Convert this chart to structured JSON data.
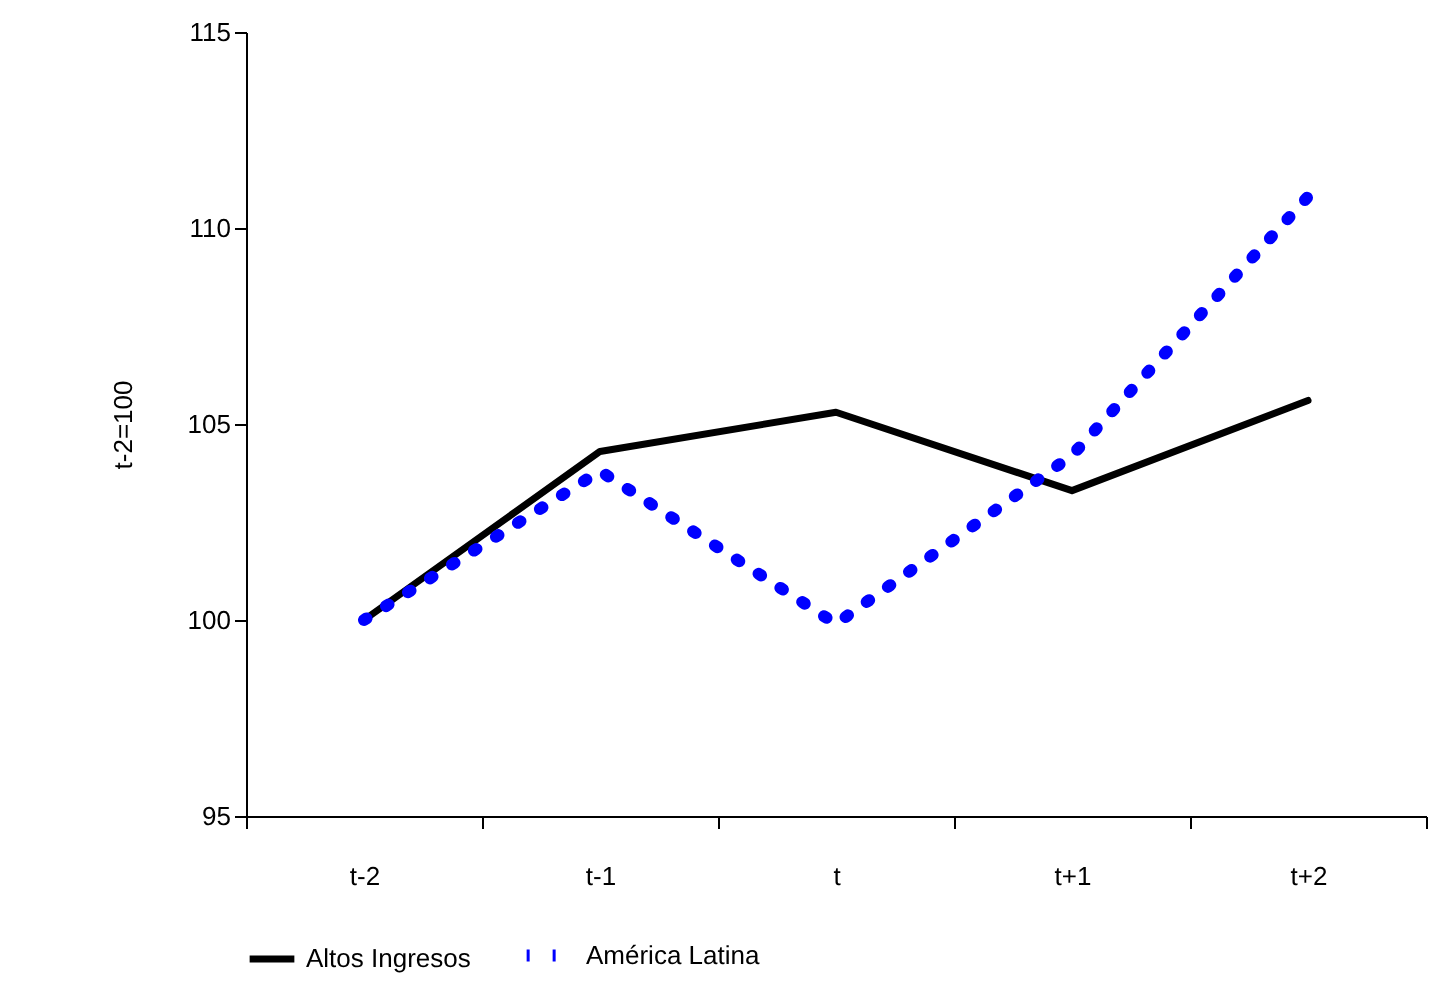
{
  "chart_data": {
    "type": "line",
    "ylabel": "t-2=100",
    "categories": [
      "t-2",
      "t-1",
      "t",
      "t+1",
      "t+2"
    ],
    "series": [
      {
        "name": "Altos Ingresos",
        "color": "#000000",
        "line_style": "solid",
        "values": [
          100,
          104.3,
          105.3,
          103.3,
          105.6
        ]
      },
      {
        "name": "América Latina",
        "color": "#0000ff",
        "line_style": "dotted",
        "values": [
          100,
          103.8,
          99.9,
          104.2,
          110.8
        ]
      }
    ],
    "ylim": [
      95,
      115
    ],
    "yticks": [
      95,
      100,
      105,
      110,
      115
    ],
    "grid": false,
    "legend": "bottom",
    "marker": "none"
  }
}
